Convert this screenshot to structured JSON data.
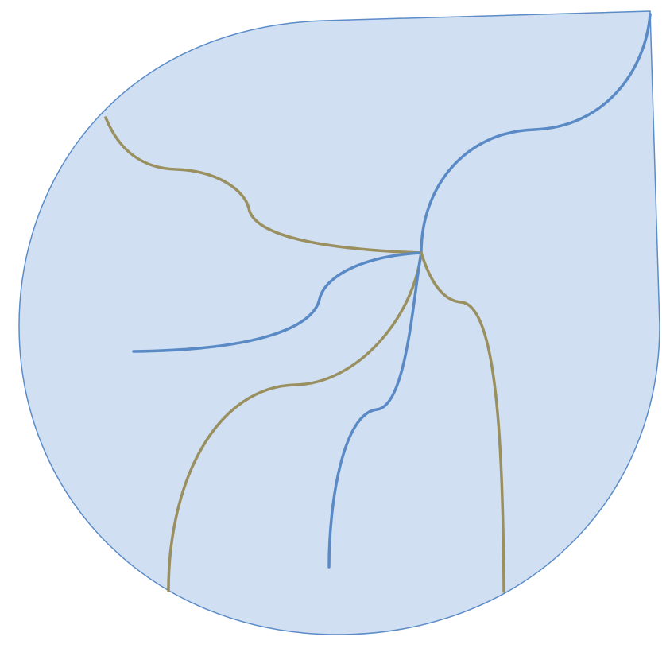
{
  "diagram": {
    "shape": "teardrop",
    "colors": {
      "shape_fill": "#d0dff2",
      "shape_stroke": "#5b8cc8",
      "blue_line": "#5a8ac6",
      "olive_line": "#9a8f5e"
    },
    "paths": [
      {
        "id": "top-right-branch",
        "color": "blue"
      },
      {
        "id": "upper-left-branch",
        "color": "olive"
      },
      {
        "id": "left-branch",
        "color": "blue"
      },
      {
        "id": "lower-left-branch",
        "color": "olive"
      },
      {
        "id": "bottom-center-branch",
        "color": "blue"
      },
      {
        "id": "lower-right-branch",
        "color": "olive"
      }
    ]
  }
}
